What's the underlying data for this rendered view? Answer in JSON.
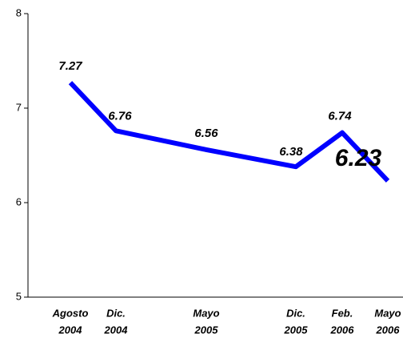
{
  "chart_data": {
    "type": "line",
    "categories": [
      [
        "Agosto",
        "2004"
      ],
      [
        "Dic.",
        "2004"
      ],
      [
        "Mayo",
        "2005"
      ],
      [
        "Dic.",
        "2005"
      ],
      [
        "Feb.",
        "2006"
      ],
      [
        "Mayo",
        "2006"
      ]
    ],
    "series": [
      {
        "color": "#0000ff",
        "values": [
          7.27,
          6.76,
          6.56,
          6.38,
          6.74,
          6.23
        ]
      }
    ],
    "ylim": [
      5,
      8
    ],
    "yticks": [
      5,
      6,
      7,
      8
    ]
  }
}
